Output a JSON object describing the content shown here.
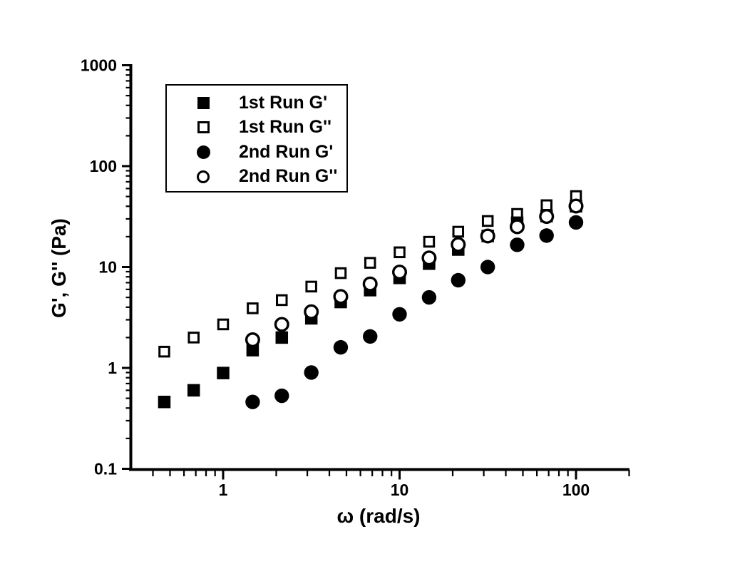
{
  "figure": {
    "background_color": "#ffffff",
    "foreground_color": "#000000"
  },
  "chart_data": {
    "type": "scatter",
    "title": "",
    "xlabel": "ω (rad/s)",
    "ylabel": "G', G'' (Pa)",
    "x_scale": "log",
    "y_scale": "log",
    "xlim": [
      0.3,
      200
    ],
    "ylim": [
      0.1,
      1000
    ],
    "grid": false,
    "legend_position": "upper-left-inside",
    "x_major_ticks": [
      1,
      10,
      100
    ],
    "x_major_tick_labels": [
      "1",
      "10",
      "100"
    ],
    "y_major_ticks": [
      0.1,
      1,
      10,
      100,
      1000
    ],
    "y_major_tick_labels": [
      "0.1",
      "1",
      "10",
      "100",
      "1000"
    ],
    "series": [
      {
        "name": "1st Run G'",
        "marker": "filled-square",
        "x": [
          0.464,
          0.681,
          1.0,
          1.47,
          2.15,
          3.16,
          4.64,
          6.81,
          10.0,
          14.7,
          21.5,
          31.6,
          46.4,
          68.1,
          100.0
        ],
        "y": [
          0.46,
          0.6,
          0.89,
          1.5,
          2.0,
          3.1,
          4.5,
          5.9,
          7.8,
          10.8,
          14.9,
          20.3,
          27.5,
          32.0,
          40.0
        ]
      },
      {
        "name": "1st Run G''",
        "marker": "open-square",
        "x": [
          0.464,
          0.681,
          1.0,
          1.47,
          2.15,
          3.16,
          4.64,
          6.81,
          10.0,
          14.7,
          21.5,
          31.6,
          46.4,
          68.1,
          100.0
        ],
        "y": [
          1.45,
          2.0,
          2.7,
          3.9,
          4.7,
          6.4,
          8.7,
          11.0,
          14.0,
          17.8,
          22.4,
          28.6,
          33.6,
          41.0,
          50.5
        ]
      },
      {
        "name": "2nd Run G'",
        "marker": "filled-circle",
        "x": [
          1.47,
          2.15,
          3.16,
          4.64,
          6.81,
          10.0,
          14.7,
          21.5,
          31.6,
          46.4,
          68.1,
          100.0
        ],
        "y": [
          0.46,
          0.53,
          0.9,
          1.6,
          2.05,
          3.4,
          5.0,
          7.4,
          10.0,
          16.6,
          20.5,
          27.7
        ]
      },
      {
        "name": "2nd Run G''",
        "marker": "open-circle",
        "x": [
          1.47,
          2.15,
          3.16,
          4.64,
          6.81,
          10.0,
          14.7,
          21.5,
          31.6,
          46.4,
          68.1,
          100.0
        ],
        "y": [
          1.9,
          2.7,
          3.6,
          5.1,
          6.8,
          8.9,
          12.3,
          16.7,
          20.3,
          25.1,
          31.7,
          40.2
        ]
      }
    ]
  },
  "legend": {
    "items": [
      {
        "label": "1st Run G'",
        "marker": "filled-square"
      },
      {
        "label": "1st Run G''",
        "marker": "open-square"
      },
      {
        "label": "2nd Run G'",
        "marker": "filled-circle"
      },
      {
        "label": "2nd Run G''",
        "marker": "open-circle"
      }
    ]
  }
}
